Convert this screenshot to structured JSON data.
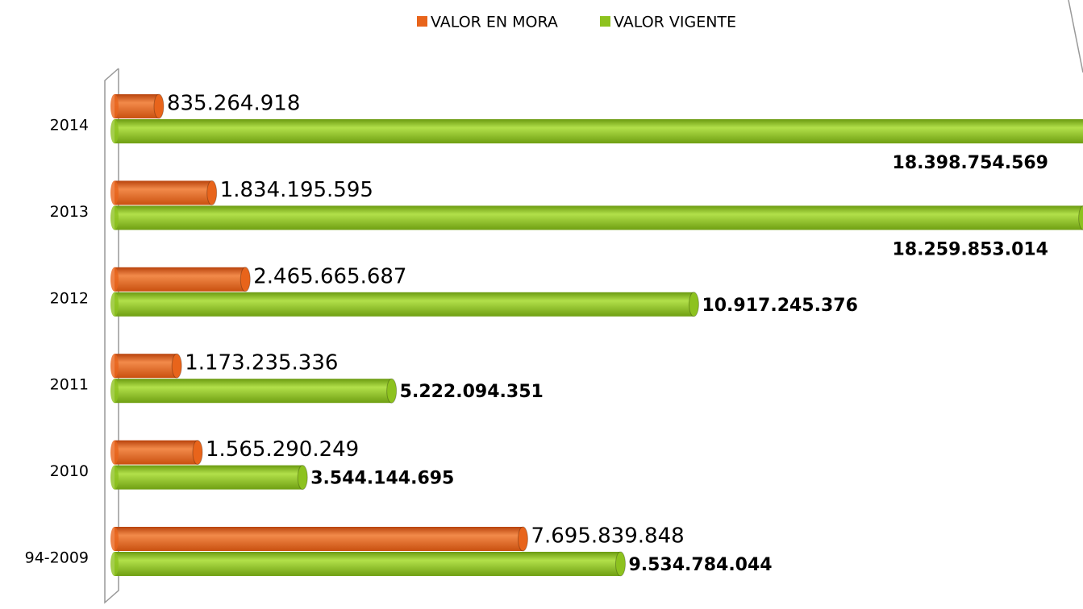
{
  "chart_data": {
    "type": "bar",
    "categories": [
      "94-2009",
      "2010",
      "2011",
      "2012",
      "2013",
      "2014"
    ],
    "series": [
      {
        "name": "VALOR EN MORA",
        "color": "#e8641b",
        "values": [
          7695839848,
          1565290249,
          1173235336,
          2465665687,
          1834195595,
          835264918
        ],
        "value_labels": [
          "7.695.839.848",
          "1.565.290.249",
          "1.173.235.336",
          "2.465.665.687",
          "1.834.195.595",
          "835.264.918"
        ]
      },
      {
        "name": "VALOR VIGENTE",
        "color": "#8dc21f",
        "values": [
          9534784044,
          3544144695,
          5222094351,
          10917245376,
          18259853014,
          18398754569
        ],
        "value_labels": [
          "9.534.784.044",
          "3.544.144.695",
          "5.222.094.351",
          "10.917.245.376",
          "18.259.853.014",
          "18.398.754.569"
        ]
      }
    ],
    "xlim": [
      0,
      18250000000
    ]
  }
}
